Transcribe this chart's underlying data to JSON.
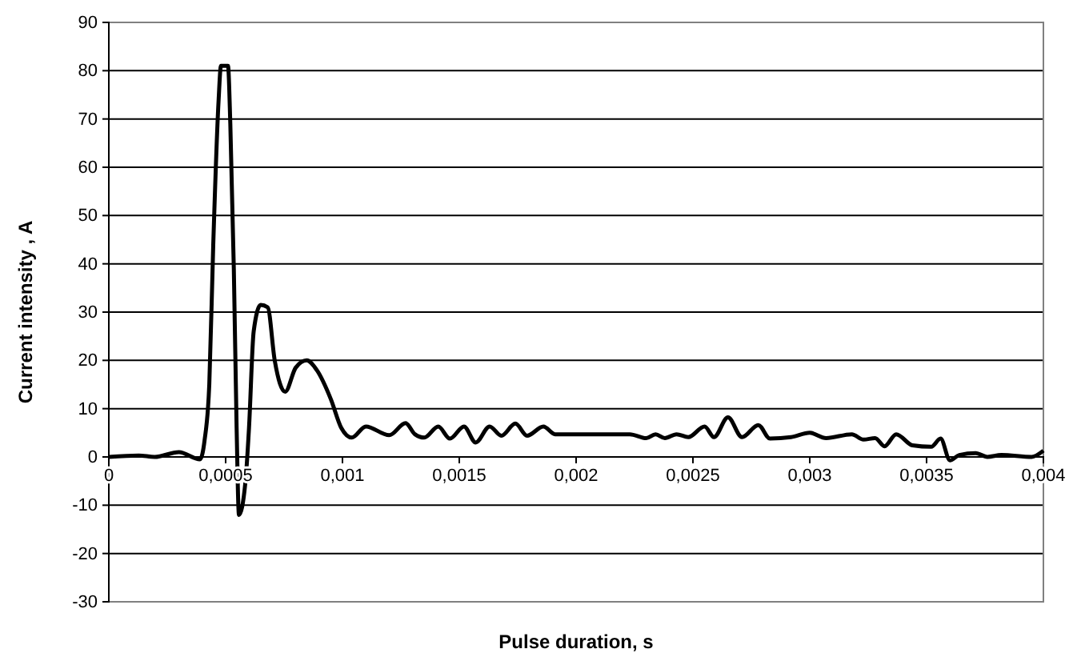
{
  "chart_data": {
    "type": "line",
    "xlabel": "Pulse duration,  s",
    "ylabel": "Current  intensity ,  A",
    "x": [
      0,
      0.000128,
      0.000196,
      0.0003,
      0.00039,
      0.00041,
      0.00043,
      0.000447,
      0.00047,
      0.00048,
      0.00051,
      0.00052,
      0.000535,
      0.000547,
      0.000557,
      0.000584,
      0.0006,
      0.00062,
      0.00065,
      0.00068,
      0.00071,
      0.000755,
      0.0008,
      0.000847,
      0.00089,
      0.00095,
      0.000995,
      0.00104,
      0.0011,
      0.0012,
      0.00127,
      0.00131,
      0.00135,
      0.00141,
      0.00146,
      0.00152,
      0.00157,
      0.00163,
      0.00168,
      0.00174,
      0.00179,
      0.00186,
      0.00191,
      0.00223,
      0.0023,
      0.00234,
      0.00238,
      0.00243,
      0.00248,
      0.00255,
      0.00259,
      0.00265,
      0.00271,
      0.00278,
      0.00283,
      0.00292,
      0.003,
      0.00307,
      0.00318,
      0.00323,
      0.00328,
      0.00332,
      0.00337,
      0.00344,
      0.00352,
      0.00356,
      0.0036,
      0.00364,
      0.00371,
      0.00376,
      0.00382,
      0.00395,
      0.004
    ],
    "series": [
      {
        "color": "#000000",
        "values": [
          0,
          0.3,
          0,
          1,
          -0.5,
          3.5,
          15,
          44,
          74,
          81,
          81,
          69,
          39,
          6,
          -12,
          -5.5,
          6,
          26,
          31.5,
          31,
          20,
          13.5,
          18.5,
          20,
          18,
          12,
          6,
          4,
          6.3,
          4.5,
          7,
          4.7,
          4,
          6.3,
          3.8,
          6.3,
          3,
          6.3,
          4.4,
          6.9,
          4.4,
          6.3,
          4.7,
          4.7,
          3.9,
          4.7,
          3.9,
          4.7,
          4.1,
          6.3,
          4.1,
          8.2,
          4.1,
          6.6,
          3.8,
          4.1,
          5,
          3.9,
          4.7,
          3.6,
          3.9,
          2.2,
          4.7,
          2.4,
          2.1,
          3.8,
          -0.7,
          0.4,
          0.8,
          0,
          0.4,
          0,
          1.3
        ]
      }
    ],
    "xlim": [
      0,
      0.004
    ],
    "xticks": [
      0,
      {
        "value": 0.0005,
        "label": "0,0005"
      },
      {
        "value": 0.001,
        "label": "0,001"
      },
      {
        "value": 0.0015,
        "label": "0,0015"
      },
      {
        "value": 0.002,
        "label": "0,002"
      },
      {
        "value": 0.0025,
        "label": "0,0025"
      },
      {
        "value": 0.003,
        "label": "0,003"
      },
      {
        "value": 0.0035,
        "label": "0,0035"
      },
      {
        "value": 0.004,
        "label": "0,004"
      }
    ],
    "ylim": [
      -30,
      90
    ],
    "yticks": [
      -30,
      -20,
      -10,
      0,
      10,
      20,
      30,
      40,
      50,
      60,
      70,
      80,
      90
    ],
    "grid": "y",
    "legend": false,
    "marker": "none",
    "line_style": "solid"
  }
}
